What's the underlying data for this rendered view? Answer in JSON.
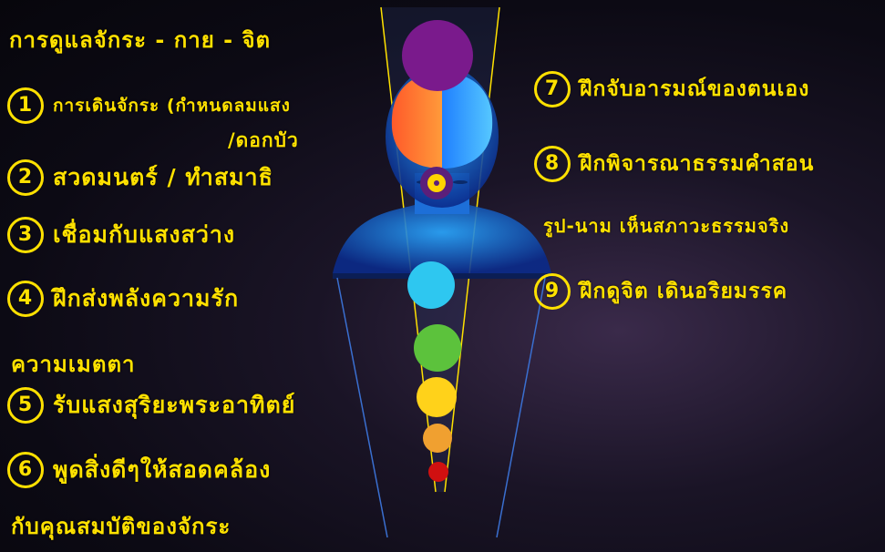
{
  "title": "การดูแลจักระ - กาย - จิต",
  "left_items": [
    {
      "num": "1",
      "lines": [
        "การเดินจักระ (กำหนดลมแสง",
        "/ดอกบัว"
      ]
    },
    {
      "num": "2",
      "lines": [
        "สวดมนตร์ / ทำสมาธิ"
      ]
    },
    {
      "num": "3",
      "lines": [
        "เชื่อมกับแสงสว่าง"
      ]
    },
    {
      "num": "4",
      "lines": [
        "ฝึกส่งพลังความรัก",
        "ความเมตตา"
      ]
    },
    {
      "num": "5",
      "lines": [
        "รับแสงสุริยะพระอาทิตย์"
      ]
    },
    {
      "num": "6",
      "lines": [
        "พูดสิ่งดีๆให้สอดคล้อง",
        "กับคุณสมบัติของจักระ"
      ]
    }
  ],
  "right_items": [
    {
      "num": "7",
      "lines": [
        "ฝึกจับอารมณ์ของตนเอง"
      ]
    },
    {
      "num": "8",
      "lines": [
        "ฝึกพิจารณาธรรมคำสอน",
        "รูป-นาม เห็นสภาวะธรรมจริง"
      ]
    },
    {
      "num": "9",
      "lines": [
        "ฝึกดูจิต เดินอริยมรรค"
      ]
    }
  ],
  "colors": {
    "ink": "#ffe100",
    "crown": "#7a1a8c",
    "third_eye_outer": "#5b1f7a",
    "third_eye_inner": "#ffd400",
    "throat": "#2ec7f0",
    "heart": "#5cc23c",
    "solar": "#ffd21a",
    "sacral": "#f0a030",
    "root": "#d01010"
  }
}
